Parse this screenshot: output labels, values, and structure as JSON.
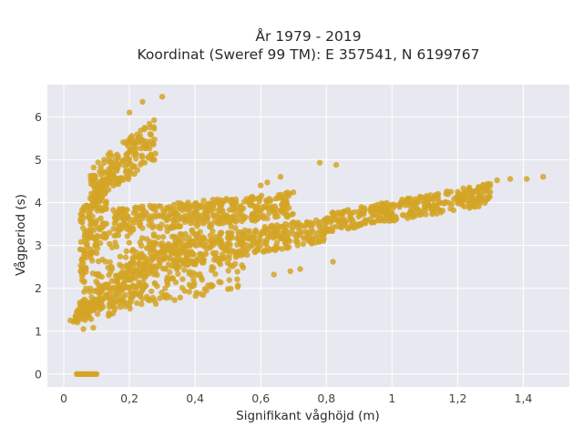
{
  "chart_data": {
    "type": "scatter",
    "title": "År 1979 - 2019",
    "subtitle": "Koordinat (Sweref 99 TM): E 357541, N 6199767",
    "xlabel": "Signifikant våghöjd (m)",
    "ylabel": "Vågperiod (s)",
    "xlim": [
      -0.05,
      1.54
    ],
    "ylim": [
      -0.3,
      6.75
    ],
    "x_ticks": [
      0,
      0.2,
      0.4,
      0.6,
      0.8,
      1,
      1.2,
      1.4
    ],
    "x_tick_labels": [
      "0",
      "0,2",
      "0,4",
      "0,6",
      "0,8",
      "1",
      "1,2",
      "1,4"
    ],
    "y_ticks": [
      0,
      1,
      2,
      3,
      4,
      5,
      6
    ],
    "y_tick_labels": [
      "0",
      "1",
      "2",
      "3",
      "4",
      "5",
      "6"
    ],
    "grid": true,
    "point_color": "#d4a526",
    "plot_background": "#e8e8f0",
    "series": [
      {
        "clusters": [
          {
            "shape": "rows",
            "y": 0,
            "x_range": [
              0.04,
              0.1
            ],
            "x_step": 0.008
          },
          {
            "shape": "band",
            "x_range": [
              0.03,
              0.25
            ],
            "y_at_start": [
              1.15,
              1.55
            ],
            "y_at_end": [
              1.9,
              2.9
            ]
          },
          {
            "shape": "band",
            "x_range": [
              0.05,
              0.55
            ],
            "y_at_start": [
              1.2,
              3.2
            ],
            "y_at_end": [
              2.05,
              3.75
            ]
          },
          {
            "shape": "band",
            "x_range": [
              0.25,
              0.8
            ],
            "y_at_start": [
              2.35,
              3.05
            ],
            "y_at_end": [
              3.1,
              3.65
            ]
          },
          {
            "shape": "band",
            "x_range": [
              0.8,
              1.3
            ],
            "y_at_start": [
              3.3,
              3.75
            ],
            "y_at_end": [
              3.95,
              4.45
            ]
          },
          {
            "shape": "band",
            "x_range": [
              0.15,
              0.7
            ],
            "y_at_start": [
              3.3,
              3.85
            ],
            "y_at_end": [
              3.65,
              4.25
            ]
          },
          {
            "shape": "band",
            "x_range": [
              0.05,
              0.13
            ],
            "y_at_start": [
              2.2,
              3.8
            ],
            "y_at_end": [
              3.3,
              4.6
            ]
          },
          {
            "shape": "band",
            "x_range": [
              0.08,
              0.28
            ],
            "y_at_start": [
              3.9,
              4.8
            ],
            "y_at_end": [
              5.0,
              6.0
            ]
          }
        ],
        "points": [
          [
            0.04,
            0.0
          ],
          [
            0.05,
            0.0
          ],
          [
            0.06,
            0.0
          ],
          [
            0.07,
            0.0
          ],
          [
            0.08,
            0.0
          ],
          [
            0.09,
            0.0
          ],
          [
            0.1,
            0.0
          ],
          [
            0.02,
            1.25
          ],
          [
            0.03,
            1.22
          ],
          [
            0.06,
            1.05
          ],
          [
            0.09,
            1.08
          ],
          [
            0.3,
            6.47
          ],
          [
            0.24,
            6.35
          ],
          [
            0.2,
            6.1
          ],
          [
            0.78,
            4.93
          ],
          [
            0.83,
            4.88
          ],
          [
            0.66,
            4.6
          ],
          [
            0.6,
            4.4
          ],
          [
            0.62,
            4.47
          ],
          [
            0.82,
            2.62
          ],
          [
            0.72,
            2.45
          ],
          [
            0.69,
            2.4
          ],
          [
            0.64,
            2.32
          ],
          [
            1.32,
            4.52
          ],
          [
            1.36,
            4.55
          ],
          [
            1.41,
            4.55
          ],
          [
            1.46,
            4.6
          ],
          [
            1.29,
            4.4
          ],
          [
            1.28,
            4.35
          ],
          [
            1.2,
            4.25
          ],
          [
            1.14,
            4.12
          ],
          [
            1.05,
            4.05
          ]
        ]
      }
    ]
  }
}
